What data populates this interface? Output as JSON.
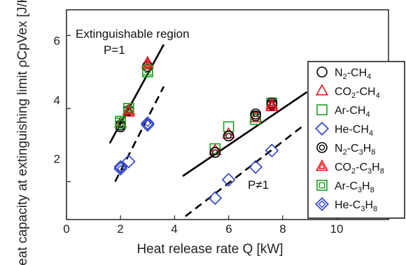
{
  "chart_data": {
    "type": "scatter",
    "title": "",
    "xlabel": "Heat release rate Q [kW]",
    "ylabel": "Heat capacity at extinguishing limit ρCpVex [J/K]",
    "xlim": [
      0,
      10
    ],
    "ylim": [
      1,
      6.7
    ],
    "x_ticks": [
      "0",
      "2",
      "4",
      "6",
      "8",
      "10"
    ],
    "y_ticks": [
      "2",
      "4",
      "6"
    ],
    "grid": false,
    "legend_position": "right",
    "annotations": {
      "region": "Extinguishable region",
      "p1": "P=1",
      "pneq": "P≠1"
    },
    "series": [
      {
        "name": "N2-CH4",
        "marker": "circle",
        "color": "#000000",
        "points": [
          [
            2.0,
            3.5
          ],
          [
            5.5,
            2.8
          ],
          [
            6.0,
            3.25
          ],
          [
            7.0,
            3.8
          ],
          [
            7.6,
            4.1
          ]
        ]
      },
      {
        "name": "CO2-CH4",
        "marker": "triangle",
        "color": "#e8141e",
        "points": [
          [
            2.0,
            3.6
          ],
          [
            2.3,
            3.9
          ],
          [
            3.0,
            5.25
          ],
          [
            5.5,
            2.85
          ],
          [
            6.0,
            3.3
          ],
          [
            7.0,
            3.75
          ],
          [
            7.6,
            4.05
          ]
        ]
      },
      {
        "name": "Ar-CH4",
        "marker": "square",
        "color": "#1f9e1f",
        "points": [
          [
            2.0,
            3.65
          ],
          [
            2.3,
            4.0
          ],
          [
            3.0,
            5.0
          ],
          [
            5.5,
            2.9
          ],
          [
            6.0,
            3.5
          ],
          [
            7.0,
            3.7
          ],
          [
            7.6,
            4.15
          ]
        ]
      },
      {
        "name": "He-CH4",
        "marker": "diamond",
        "color": "#2f3fc8",
        "points": [
          [
            2.0,
            2.4
          ],
          [
            2.3,
            2.55
          ],
          [
            3.0,
            3.55
          ],
          [
            5.5,
            1.55
          ],
          [
            6.0,
            2.05
          ],
          [
            7.0,
            2.4
          ],
          [
            7.6,
            2.85
          ]
        ]
      },
      {
        "name": "N2-C3H8",
        "marker": "double-circle",
        "color": "#000000",
        "points": [
          [
            2.0,
            3.55
          ],
          [
            2.3,
            3.95
          ],
          [
            3.0,
            5.15
          ],
          [
            5.5,
            2.8
          ],
          [
            6.0,
            3.25
          ],
          [
            7.0,
            3.85
          ],
          [
            7.6,
            4.15
          ]
        ]
      },
      {
        "name": "CO2-C3H8",
        "marker": "double-triangle",
        "color": "#e8141e",
        "points": [
          [
            2.3,
            3.95
          ],
          [
            3.0,
            5.2
          ],
          [
            7.6,
            4.1
          ]
        ]
      },
      {
        "name": "Ar-C3H8",
        "marker": "double-square",
        "color": "#1f9e1f",
        "points": [
          [
            2.0,
            3.6
          ],
          [
            2.3,
            4.0
          ],
          [
            3.0,
            5.05
          ]
        ]
      },
      {
        "name": "He-C3H8",
        "marker": "double-diamond",
        "color": "#2f3fc8",
        "points": [
          [
            2.0,
            2.35
          ],
          [
            3.0,
            3.6
          ]
        ]
      }
    ],
    "fit_lines": [
      {
        "style": "solid",
        "points": [
          [
            1.6,
            3.05
          ],
          [
            3.6,
            5.75
          ]
        ]
      },
      {
        "style": "dashed",
        "points": [
          [
            1.8,
            2.0
          ],
          [
            3.6,
            4.6
          ]
        ]
      },
      {
        "style": "solid",
        "points": [
          [
            4.3,
            2.15
          ],
          [
            8.9,
            4.45
          ]
        ]
      },
      {
        "style": "dashed",
        "points": [
          [
            4.4,
            1.05
          ],
          [
            8.8,
            3.55
          ]
        ]
      }
    ]
  },
  "legend_labels": {
    "l0a": "N",
    "l0b": "2",
    "l0c": "-CH",
    "l0d": "4",
    "l1a": "CO",
    "l1b": "2",
    "l1c": "-CH",
    "l1d": "4",
    "l2a": "Ar-CH",
    "l2b": "4",
    "l3a": "He-CH",
    "l3b": "4",
    "l4a": "N",
    "l4b": "2",
    "l4c": "-C",
    "l4d": "3",
    "l4e": "H",
    "l4f": "8",
    "l5a": "CO",
    "l5b": "2",
    "l5c": "-C",
    "l5d": "3",
    "l5e": "H",
    "l5f": "8",
    "l6a": "Ar-C",
    "l6b": "3",
    "l6c": "H",
    "l6d": "8",
    "l7a": "He-C",
    "l7b": "3",
    "l7c": "H",
    "l7d": "8"
  }
}
